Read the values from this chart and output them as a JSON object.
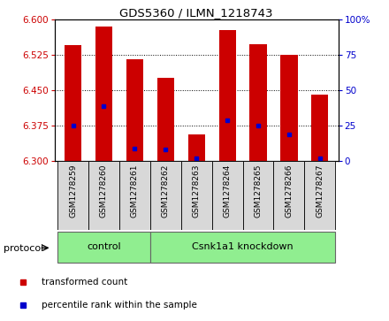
{
  "title": "GDS5360 / ILMN_1218743",
  "samples": [
    "GSM1278259",
    "GSM1278260",
    "GSM1278261",
    "GSM1278262",
    "GSM1278263",
    "GSM1278264",
    "GSM1278265",
    "GSM1278266",
    "GSM1278267"
  ],
  "bar_tops": [
    6.545,
    6.585,
    6.515,
    6.475,
    6.355,
    6.577,
    6.547,
    6.525,
    6.44
  ],
  "bar_bottom": 6.3,
  "blue_dot_values": [
    6.375,
    6.415,
    6.325,
    6.323,
    6.305,
    6.385,
    6.375,
    6.355,
    6.305
  ],
  "ylim_left": [
    6.3,
    6.6
  ],
  "ylim_right": [
    0,
    100
  ],
  "yticks_left": [
    6.3,
    6.375,
    6.45,
    6.525,
    6.6
  ],
  "yticks_right": [
    0,
    25,
    50,
    75,
    100
  ],
  "bar_color": "#cc0000",
  "blue_color": "#0000cc",
  "groups": [
    {
      "label": "control",
      "start": 0,
      "end": 3
    },
    {
      "label": "Csnk1a1 knockdown",
      "start": 3,
      "end": 9
    }
  ],
  "group_color": "#90ee90",
  "tick_label_color_left": "#cc0000",
  "tick_label_color_right": "#0000cc",
  "legend_items": [
    {
      "label": "transformed count",
      "color": "#cc0000"
    },
    {
      "label": "percentile rank within the sample",
      "color": "#0000cc"
    }
  ],
  "protocol_label": "protocol",
  "bar_width": 0.55
}
